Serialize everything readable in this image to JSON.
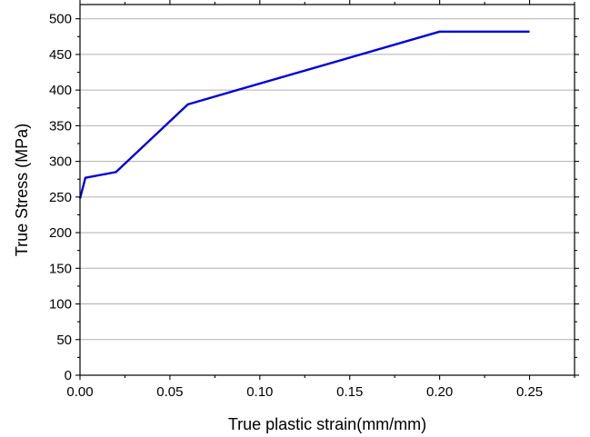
{
  "chart_data": {
    "type": "line",
    "title": "",
    "xlabel": "True plastic strain(mm/mm)",
    "ylabel": "True Stress (MPa)",
    "xlim": [
      0,
      0.275
    ],
    "ylim": [
      0,
      520
    ],
    "xticks": [
      0.0,
      0.05,
      0.1,
      0.15,
      0.2,
      0.25
    ],
    "xtick_labels": [
      "0.00",
      "0.05",
      "0.10",
      "0.15",
      "0.20",
      "0.25"
    ],
    "yticks": [
      0,
      50,
      100,
      150,
      200,
      250,
      300,
      350,
      400,
      450,
      500
    ],
    "ytick_labels": [
      "0",
      "50",
      "100",
      "150",
      "200",
      "250",
      "300",
      "350",
      "400",
      "450",
      "500"
    ],
    "grid": "horizontal",
    "legend": "none",
    "series": [
      {
        "color": "#0000dd",
        "x": [
          0.0,
          0.003,
          0.02,
          0.06,
          0.2,
          0.25
        ],
        "y": [
          248,
          277,
          285,
          380,
          482,
          482
        ]
      }
    ]
  }
}
